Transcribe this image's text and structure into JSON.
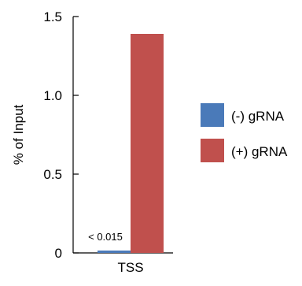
{
  "chart_data": {
    "type": "bar",
    "categories": [
      "TSS"
    ],
    "series": [
      {
        "name": "(-) gRNA",
        "values": [
          0.015
        ],
        "color": "#4a7ab9"
      },
      {
        "name": "(+) gRNA",
        "values": [
          1.39
        ],
        "color": "#c0504d"
      }
    ],
    "ylabel": "% of Input",
    "ylim": [
      0,
      1.5
    ],
    "yticks": [
      0,
      0.5,
      1.0,
      1.5
    ],
    "ytick_labels": [
      "0",
      "0.5",
      "1.0",
      "1.5"
    ],
    "annotations": [
      {
        "text": "< 0.015"
      }
    ],
    "legend_position": "right",
    "grid": false
  }
}
